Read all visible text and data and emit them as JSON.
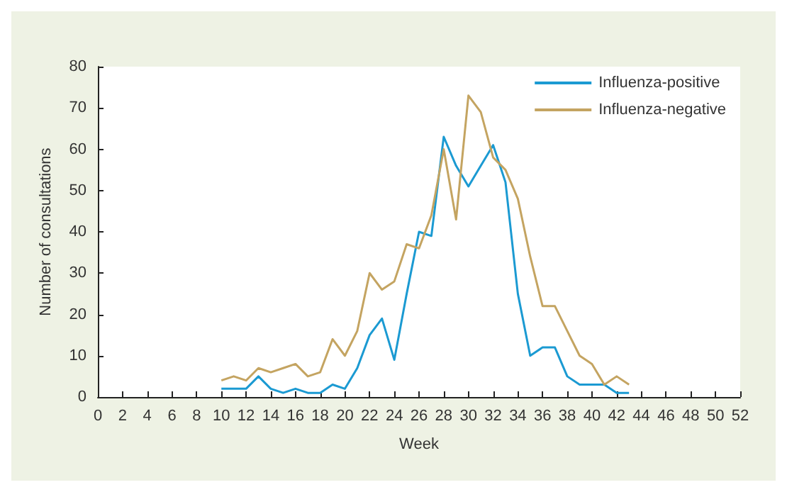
{
  "chart_data": {
    "type": "line",
    "xlabel": "Week",
    "ylabel": "Number of consultations",
    "x": [
      10,
      11,
      12,
      13,
      14,
      15,
      16,
      17,
      18,
      19,
      20,
      21,
      22,
      23,
      24,
      25,
      26,
      27,
      28,
      29,
      30,
      31,
      32,
      33,
      34,
      35,
      36,
      37,
      38,
      39,
      40,
      41,
      42,
      43
    ],
    "series": [
      {
        "name": "Influenza-positive",
        "color": "#1b9ad2",
        "values": [
          2,
          2,
          2,
          5,
          2,
          1,
          2,
          1,
          1,
          3,
          2,
          7,
          15,
          19,
          9,
          25,
          40,
          39,
          63,
          56,
          51,
          56,
          61,
          52,
          25,
          10,
          12,
          12,
          5,
          3,
          3,
          3,
          1,
          1
        ]
      },
      {
        "name": "Influenza-negative",
        "color": "#c4a461",
        "values": [
          4,
          5,
          4,
          7,
          6,
          7,
          8,
          5,
          6,
          14,
          10,
          16,
          30,
          26,
          28,
          37,
          36,
          44,
          60,
          43,
          73,
          69,
          58,
          55,
          48,
          34,
          22,
          22,
          16,
          10,
          8,
          3,
          5,
          3
        ]
      }
    ],
    "xlim": [
      0,
      52
    ],
    "xticks": [
      0,
      2,
      4,
      6,
      8,
      10,
      12,
      14,
      16,
      18,
      20,
      22,
      24,
      26,
      28,
      30,
      32,
      34,
      36,
      38,
      40,
      42,
      44,
      46,
      48,
      50,
      52
    ],
    "ylim": [
      0,
      80
    ],
    "yticks": [
      0,
      10,
      20,
      30,
      40,
      50,
      60,
      70,
      80
    ],
    "grid": false,
    "legend": "top right",
    "marker": "none",
    "line_style": "solid"
  }
}
